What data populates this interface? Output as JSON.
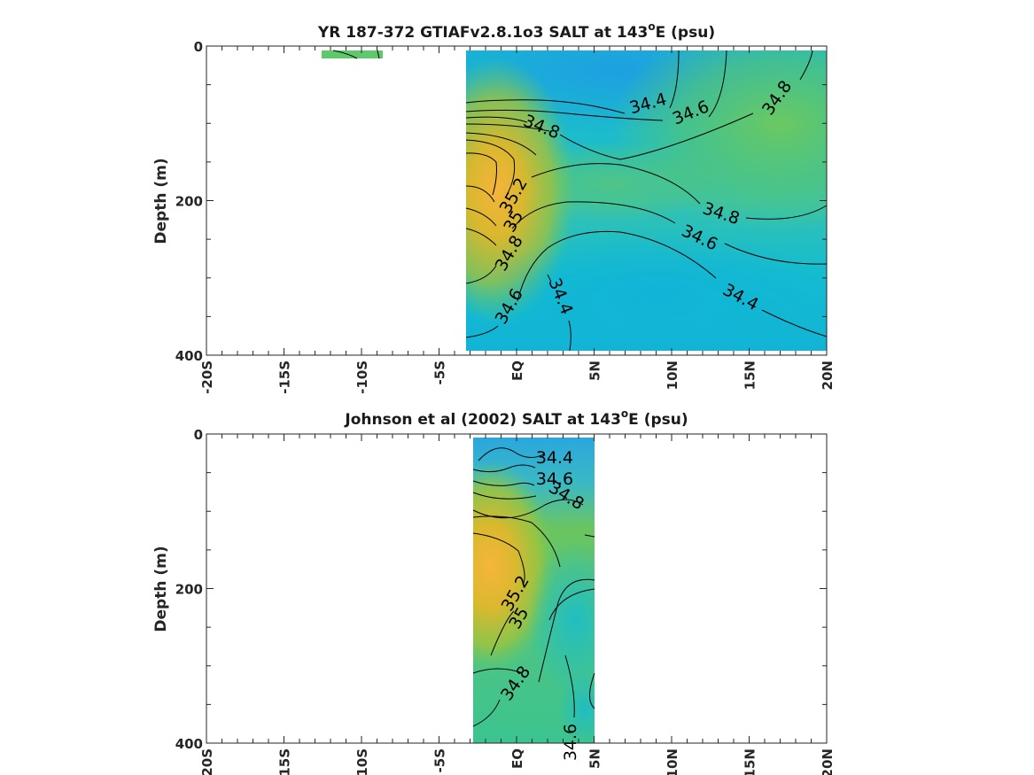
{
  "chart_data": [
    {
      "type": "heatmap",
      "title_prefix": "YR 187-372 GTIAFv2.8.1o3 SALT at 143",
      "title_sup": "o",
      "title_suffix": "E (psu)",
      "ylabel": "Depth (m)",
      "xlabel": "",
      "xlim": [
        -20,
        20
      ],
      "ylim": [
        0,
        400
      ],
      "y_inverted": true,
      "x_ticks": [
        "-20S",
        "-15S",
        "-10S",
        "-5S",
        "EQ",
        "5N",
        "10N",
        "15N",
        "20N"
      ],
      "y_ticks": [
        "0",
        "200",
        "400"
      ],
      "colormap": "parula",
      "data_extent": [
        {
          "lat": [
            -12.5,
            -8.5
          ],
          "depth": [
            5,
            15
          ]
        },
        {
          "lat": [
            -3.5,
            20
          ],
          "depth": [
            5,
            395
          ]
        }
      ],
      "contour_labels": [
        "34.4",
        "34.6",
        "34.8",
        "34.8",
        "35.2",
        "35",
        "34.8",
        "34.6",
        "34.4",
        "34.8",
        "34.6",
        "34.4"
      ],
      "salinity_core": {
        "lat": -2,
        "depth": 160,
        "value": 35.3
      }
    },
    {
      "type": "heatmap",
      "title_prefix": "Johnson et al (2002) SALT at 143",
      "title_sup": "o",
      "title_suffix": "E (psu)",
      "ylabel": "Depth (m)",
      "xlabel": "",
      "xlim": [
        -20,
        20
      ],
      "ylim": [
        0,
        400
      ],
      "y_inverted": true,
      "x_ticks": [
        "-20S",
        "-15S",
        "-10S",
        "-5S",
        "EQ",
        "5N",
        "10N",
        "15N",
        "20N"
      ],
      "y_ticks": [
        "0",
        "200",
        "400"
      ],
      "colormap": "parula",
      "data_extent": [
        {
          "lat": [
            -3,
            5
          ],
          "depth": [
            5,
            400
          ]
        }
      ],
      "contour_labels": [
        "34.4",
        "34.6",
        "34.8",
        "35.2",
        "35",
        "34.8",
        "34.6"
      ],
      "salinity_core": {
        "lat": -2,
        "depth": 170,
        "value": 35.3
      }
    }
  ],
  "colors": {
    "low": "#1fa4e0",
    "mid": "#17bcc7",
    "high": "#6cc85a",
    "core": "#f4b23a"
  }
}
